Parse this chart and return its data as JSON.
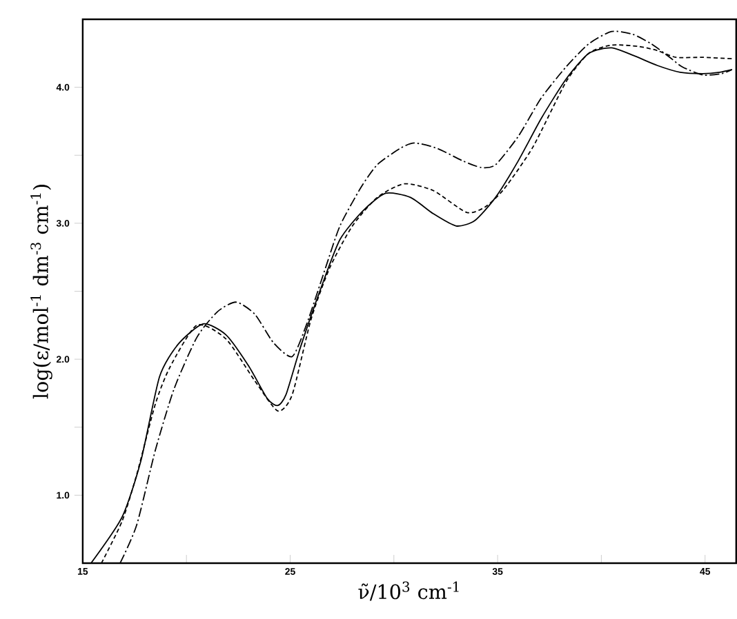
{
  "chart_data": {
    "type": "line",
    "xlabel": "ν̃/10$^{3}$ cm$^{-1}$",
    "ylabel": "log(ε/mol$^{-1}$ dm$^{-3}$ cm$^{-1}$)",
    "xlim": [
      15,
      46.5
    ],
    "ylim": [
      0.5,
      4.5
    ],
    "xticks": [
      15,
      {
        "value": 20,
        "label": null
      },
      25,
      {
        "value": 30,
        "label": null
      },
      35,
      {
        "value": 40,
        "label": null
      },
      45
    ],
    "yticks": [
      {
        "value": 1,
        "label": "1.0"
      },
      {
        "value": 1.5,
        "label": null
      },
      {
        "value": 2,
        "label": "2.0"
      },
      {
        "value": 2.5,
        "label": null
      },
      {
        "value": 3,
        "label": "3.0"
      },
      {
        "value": 3.5,
        "label": null
      },
      {
        "value": 4,
        "label": "4.0"
      }
    ],
    "marker": "none",
    "series": [
      {
        "color": "#000000",
        "line_style": "solid",
        "x": [
          15.4,
          16.9,
          17.8,
          18.7,
          19.6,
          20.8,
          21.9,
          23.0,
          23.9,
          24.4,
          24.8,
          25.5,
          26.5,
          27.4,
          28.5,
          29.6,
          30.8,
          31.9,
          33.0,
          33.9,
          34.9,
          36.0,
          37.1,
          38.3,
          39.4,
          40.5,
          41.6,
          42.7,
          43.8,
          44.9,
          45.7,
          46.3
        ],
        "values": [
          0.5,
          0.84,
          1.25,
          1.87,
          2.11,
          2.26,
          2.18,
          1.95,
          1.71,
          1.66,
          1.74,
          2.09,
          2.53,
          2.88,
          3.09,
          3.22,
          3.19,
          3.07,
          2.98,
          3.02,
          3.19,
          3.46,
          3.77,
          4.06,
          4.25,
          4.29,
          4.23,
          4.16,
          4.11,
          4.1,
          4.11,
          4.13
        ]
      },
      {
        "color": "#000000",
        "line_style": "dashed",
        "x": [
          15.9,
          16.9,
          17.6,
          18.5,
          19.2,
          20.5,
          21.9,
          23.3,
          24.4,
          25.1,
          26.0,
          26.9,
          28.0,
          29.2,
          30.5,
          31.9,
          33.5,
          34.4,
          35.3,
          36.7,
          38.3,
          39.4,
          40.5,
          41.8,
          42.7,
          43.6,
          44.9,
          46.3
        ],
        "values": [
          0.5,
          0.81,
          1.15,
          1.67,
          1.94,
          2.25,
          2.15,
          1.84,
          1.62,
          1.74,
          2.29,
          2.67,
          2.98,
          3.19,
          3.29,
          3.24,
          3.08,
          3.12,
          3.25,
          3.56,
          4.04,
          4.25,
          4.31,
          4.3,
          4.27,
          4.22,
          4.22,
          4.21
        ]
      },
      {
        "color": "#000000",
        "line_style": "dashdot",
        "x": [
          16.8,
          17.6,
          18.5,
          19.4,
          20.5,
          21.5,
          22.4,
          23.3,
          24.2,
          25.1,
          25.8,
          26.7,
          27.4,
          28.4,
          29.2,
          30.3,
          31.0,
          32.1,
          33.3,
          34.2,
          34.9,
          36.0,
          37.1,
          38.3,
          39.4,
          40.5,
          41.5,
          42.4,
          43.3,
          43.9,
          44.9,
          45.8,
          46.3
        ],
        "values": [
          0.5,
          0.78,
          1.33,
          1.78,
          2.16,
          2.35,
          2.42,
          2.33,
          2.12,
          2.02,
          2.26,
          2.67,
          2.98,
          3.26,
          3.43,
          3.55,
          3.59,
          3.55,
          3.46,
          3.41,
          3.43,
          3.64,
          3.92,
          4.15,
          4.32,
          4.41,
          4.39,
          4.32,
          4.22,
          4.15,
          4.09,
          4.1,
          4.13
        ]
      }
    ]
  }
}
